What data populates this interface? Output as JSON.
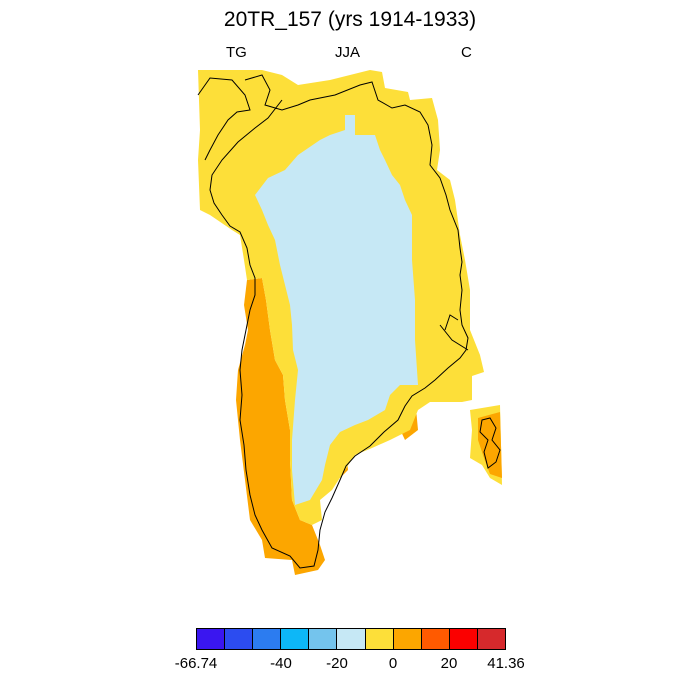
{
  "title": "20TR_157 (yrs 1914-1933)",
  "left_label": "TG",
  "center_label": "JJA",
  "right_label": "C",
  "colors": {
    "ice_interior": "#c6e8f5",
    "coastal_band": "#fddf39",
    "warm_band": "#fca600",
    "warmer_spot": "#ff5a00",
    "coastline": "#000000"
  },
  "colorbar": {
    "colors": [
      "#3a16f0",
      "#2c4cf0",
      "#2c7cf0",
      "#0db7f7",
      "#74c4ed",
      "#c6e8f5",
      "#fddf39",
      "#fca600",
      "#ff5a00",
      "#fb0000",
      "#d6292c"
    ],
    "tick_labels": [
      "-66.74",
      "-40",
      "-20",
      "0",
      "20",
      "41.36"
    ]
  }
}
